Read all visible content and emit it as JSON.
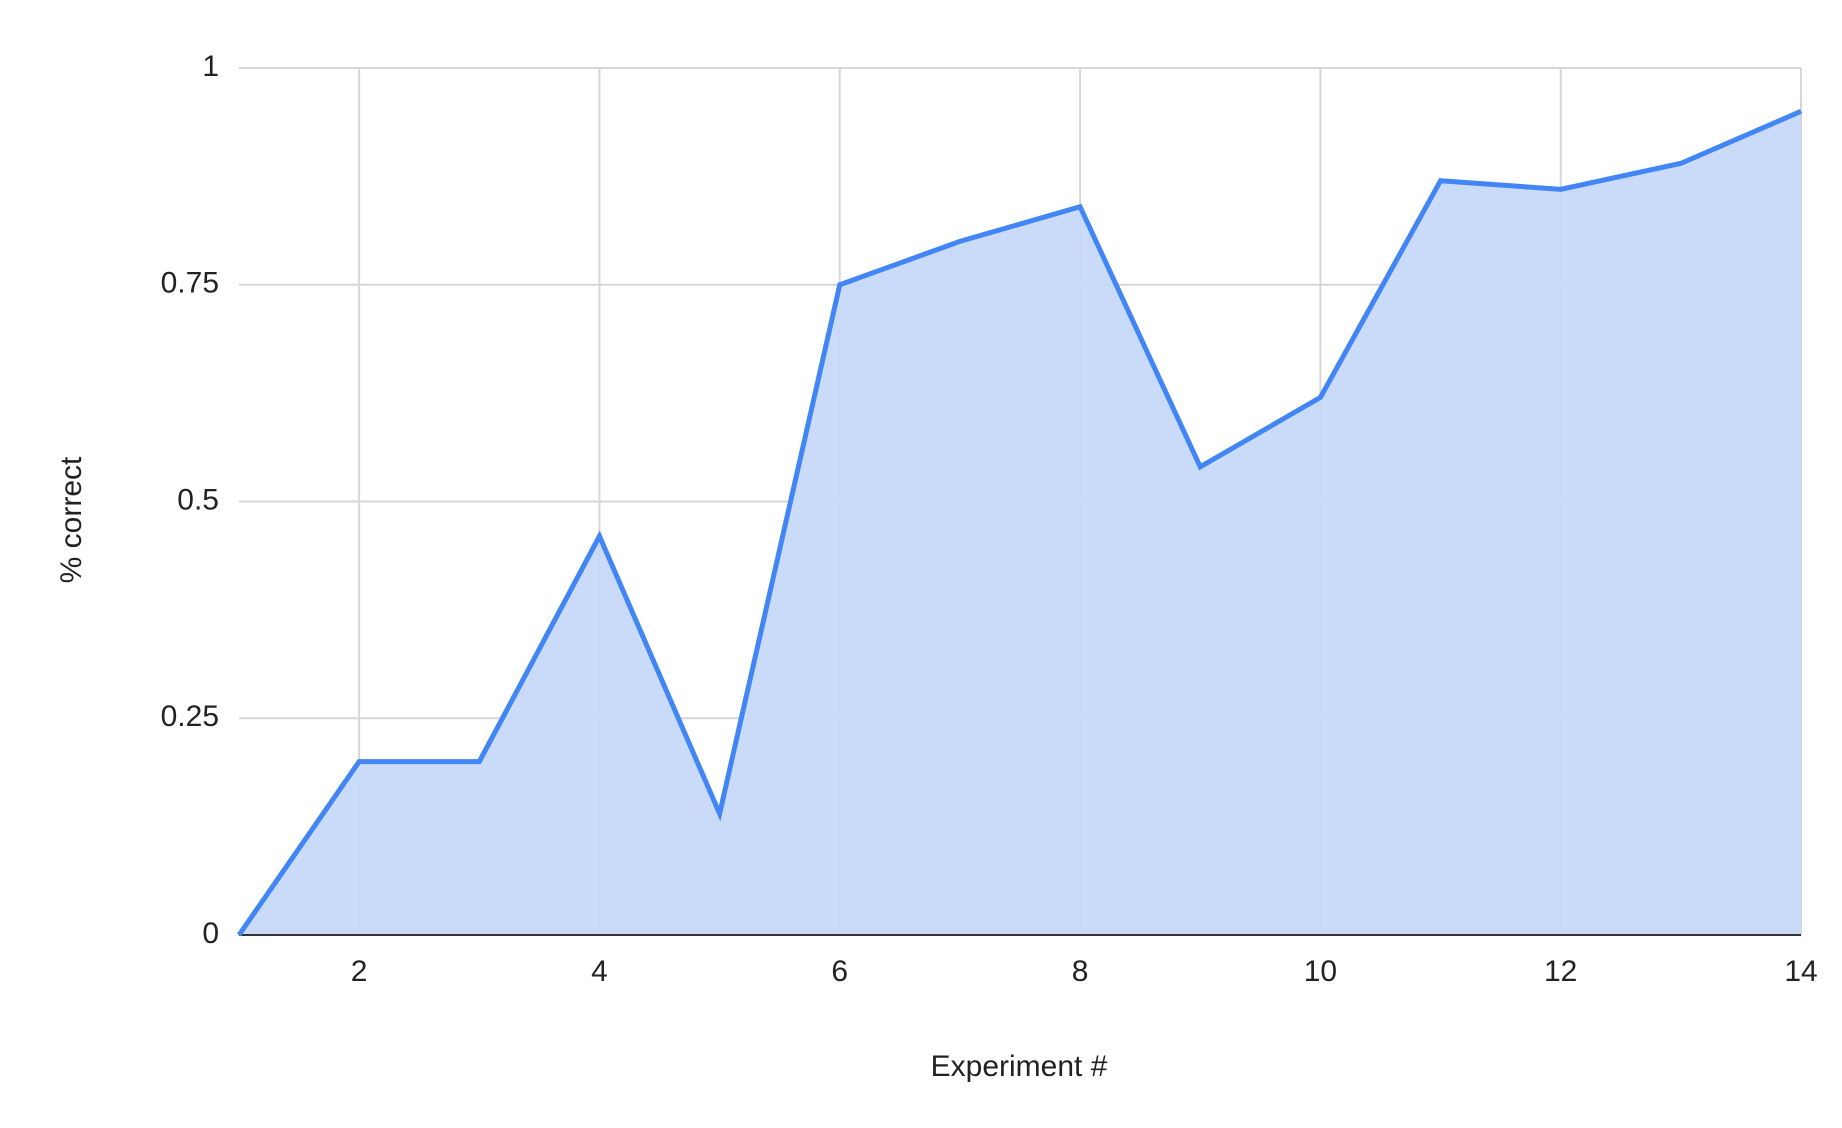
{
  "chart_data": {
    "type": "area",
    "x_label": "Experiment #",
    "y_label": "% correct",
    "x": [
      1,
      2,
      3,
      4,
      5,
      6,
      7,
      8,
      9,
      10,
      11,
      12,
      13,
      14
    ],
    "values": [
      0,
      0.2,
      0.2,
      0.46,
      0.14,
      0.75,
      0.8,
      0.84,
      0.54,
      0.62,
      0.87,
      0.86,
      0.89,
      0.95
    ],
    "color": "#4285f4",
    "fill_color": "#c6d9f8",
    "xlim": [
      1,
      14
    ],
    "xticks": [
      2,
      4,
      6,
      8,
      10,
      12,
      14
    ],
    "ylim": [
      0,
      1
    ],
    "yticks": [
      0,
      0.25,
      0.5,
      0.75,
      1
    ],
    "grid": true
  }
}
